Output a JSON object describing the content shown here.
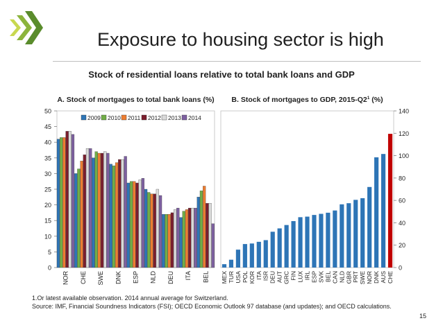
{
  "slide": {
    "title": "Exposure to housing sector is high",
    "subtitle": "Stock of residential loans relative to total bank loans and GDP",
    "footnote_1": "1.Or latest available observation. 2014 annual average for Switzerland.",
    "footnote_2": "Source: IMF, Financial Soundness Indicators (FSI); OECD Economic Outlook 97 database (and updates); and OECD calculations.",
    "page_number": "15",
    "logo_colors": [
      "#5a8c2c",
      "#8cb43c",
      "#c8d850"
    ]
  },
  "chart_data": [
    {
      "type": "bar",
      "title": "A. Stock of mortgages to total bank loans (%)",
      "categories": [
        "NOR",
        "CHE",
        "SWE",
        "DNK",
        "ESP",
        "NLD",
        "DEU",
        "ITA",
        "BEL"
      ],
      "series": [
        {
          "name": "2009",
          "color": "#2e75b6",
          "values": [
            41,
            30,
            35,
            33,
            27,
            25,
            17,
            16,
            22.5
          ]
        },
        {
          "name": "2010",
          "color": "#70ad47",
          "values": [
            41.5,
            31.5,
            37,
            32.5,
            27.5,
            24,
            17,
            18,
            24.5
          ]
        },
        {
          "name": "2011",
          "color": "#ed7d31",
          "values": [
            41.5,
            34,
            36.5,
            33.5,
            27.5,
            23.5,
            17,
            18.5,
            26
          ]
        },
        {
          "name": "2012",
          "color": "#7b1e2e",
          "values": [
            43.5,
            36,
            36.5,
            34.5,
            27,
            23.5,
            17.5,
            19,
            20.5
          ]
        },
        {
          "name": "2013",
          "color": "#d9d9d9",
          "values": [
            43.5,
            38,
            37,
            34.5,
            28,
            25,
            18.5,
            19,
            20.5
          ]
        },
        {
          "name": "2014",
          "color": "#7d60a0",
          "values": [
            42.5,
            38,
            36.5,
            35.5,
            28.5,
            23,
            19,
            19,
            14
          ]
        }
      ],
      "ylim": [
        0,
        50
      ],
      "yticks": [
        "0",
        "5",
        "10",
        "15",
        "20",
        "25",
        "30",
        "35",
        "40",
        "45",
        "50"
      ],
      "legend_position": "top"
    },
    {
      "type": "bar",
      "title": "B. Stock of mortgages to GDP, 2015-Q2",
      "title_sup": "1",
      "title_suffix": " (%)",
      "categories": [
        "MEX",
        "TUR",
        "USA",
        "POL",
        "KOR",
        "ITA",
        "ISR",
        "DEU",
        "AUT",
        "GRC",
        "FIN",
        "LUX",
        "IRL",
        "ESP",
        "SVK",
        "BEL",
        "CAN",
        "NLD",
        "GBR",
        "PRT",
        "SWE",
        "NOR",
        "DNK",
        "AUS",
        "CHE"
      ],
      "values": [
        3,
        7,
        16,
        21,
        21.5,
        23,
        24.5,
        32,
        35,
        38,
        41.5,
        45,
        45.5,
        47,
        48,
        49,
        51,
        56.5,
        57.5,
        60.5,
        62,
        72,
        98.5,
        101.5,
        119.5
      ],
      "bar_color": "#2e75b6",
      "highlight_category": "CHE",
      "highlight_color": "#c00000",
      "ylim": [
        0,
        140
      ],
      "yticks": [
        "0",
        "20",
        "40",
        "60",
        "80",
        "100",
        "120",
        "140"
      ],
      "y_axis_side": "right"
    }
  ]
}
